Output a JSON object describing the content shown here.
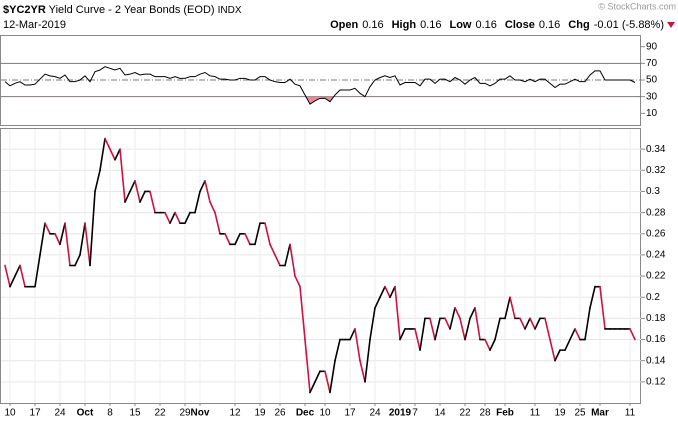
{
  "header": {
    "symbol": "$YC2YR",
    "name": "Yield Curve - 2 Year Bonds (EOD)",
    "exchange": "INDX",
    "date": "12-Mar-2019",
    "watermark": "© StockCharts.com",
    "quote": [
      {
        "label": "Open",
        "value": "0.16"
      },
      {
        "label": "High",
        "value": "0.16"
      },
      {
        "label": "Low",
        "value": "0.16"
      },
      {
        "label": "Close",
        "value": "0.16"
      },
      {
        "label": "Chg",
        "value": "-0.01 (-5.88%)"
      }
    ]
  },
  "chart_data": [
    {
      "type": "line",
      "ylim": [
        -4,
        104
      ],
      "yticks": [
        10,
        30,
        50,
        70,
        90
      ],
      "bands": [
        30,
        70
      ],
      "midline": 50,
      "fill_color": "#e88a9a",
      "series": [
        {
          "color": "#000000",
          "values": [
            48,
            43,
            46,
            48,
            44,
            44,
            45,
            51,
            57,
            55,
            54,
            52,
            56,
            48,
            48,
            50,
            55,
            48,
            60,
            62,
            66,
            64,
            62,
            64,
            56,
            57,
            59,
            56,
            57,
            57,
            54,
            54,
            54,
            52,
            54,
            52,
            52,
            54,
            54,
            57,
            59,
            55,
            54,
            51,
            51,
            50,
            50,
            52,
            52,
            50,
            50,
            54,
            54,
            50,
            48,
            47,
            47,
            51,
            45,
            43,
            32,
            21,
            25,
            28,
            28,
            24,
            32,
            38,
            38,
            38,
            40,
            34,
            30,
            42,
            50,
            53,
            55,
            53,
            55,
            44,
            47,
            47,
            47,
            43,
            51,
            51,
            46,
            51,
            51,
            48,
            53,
            50,
            45,
            50,
            53,
            46,
            46,
            43,
            46,
            51,
            51,
            55,
            50,
            50,
            48,
            51,
            48,
            51,
            51,
            46,
            41,
            45,
            45,
            48,
            51,
            48,
            48,
            56,
            61,
            61,
            50,
            50,
            50,
            50,
            50,
            50,
            47
          ]
        }
      ]
    },
    {
      "type": "line",
      "ylim": [
        0.1,
        0.36
      ],
      "yticks": [
        0.12,
        0.14,
        0.16,
        0.18,
        0.2,
        0.22,
        0.24,
        0.26,
        0.28,
        0.3,
        0.32,
        0.34
      ],
      "grid": true,
      "down_color": "#cc1144",
      "categories": [
        null,
        "10",
        null,
        null,
        null,
        null,
        "17",
        null,
        null,
        null,
        null,
        "24",
        null,
        null,
        null,
        null,
        "Oct",
        null,
        null,
        null,
        null,
        "8",
        null,
        null,
        null,
        null,
        "15",
        null,
        null,
        null,
        null,
        "22",
        null,
        null,
        null,
        null,
        "29",
        null,
        null,
        "Nov",
        null,
        null,
        null,
        null,
        null,
        null,
        "12",
        null,
        null,
        null,
        null,
        "19",
        null,
        null,
        null,
        "26",
        null,
        null,
        null,
        null,
        "Dec",
        null,
        null,
        null,
        "10",
        null,
        null,
        null,
        null,
        "17",
        null,
        null,
        null,
        null,
        "24",
        null,
        null,
        null,
        null,
        "2019",
        null,
        null,
        "7",
        null,
        null,
        null,
        null,
        "14",
        null,
        null,
        null,
        null,
        "22",
        null,
        null,
        null,
        "28",
        null,
        null,
        null,
        "Feb",
        null,
        null,
        null,
        null,
        null,
        "11",
        null,
        null,
        null,
        null,
        "19",
        null,
        null,
        null,
        "25",
        null,
        null,
        null,
        "Mar",
        null,
        null,
        null,
        null,
        null,
        "11",
        null
      ],
      "series": [
        {
          "color": "#000000",
          "values": [
            0.23,
            0.21,
            0.22,
            0.23,
            0.21,
            0.21,
            0.21,
            0.24,
            0.27,
            0.26,
            0.26,
            0.25,
            0.27,
            0.23,
            0.23,
            0.24,
            0.27,
            0.23,
            0.3,
            0.32,
            0.35,
            0.34,
            0.33,
            0.34,
            0.29,
            0.3,
            0.31,
            0.29,
            0.3,
            0.3,
            0.28,
            0.28,
            0.28,
            0.27,
            0.28,
            0.27,
            0.27,
            0.28,
            0.28,
            0.3,
            0.31,
            0.29,
            0.28,
            0.26,
            0.26,
            0.25,
            0.25,
            0.26,
            0.26,
            0.25,
            0.25,
            0.27,
            0.27,
            0.25,
            0.24,
            0.23,
            0.23,
            0.25,
            0.22,
            0.21,
            0.16,
            0.11,
            0.12,
            0.13,
            0.13,
            0.11,
            0.14,
            0.16,
            0.16,
            0.16,
            0.17,
            0.14,
            0.12,
            0.16,
            0.19,
            0.2,
            0.21,
            0.2,
            0.21,
            0.16,
            0.17,
            0.17,
            0.17,
            0.15,
            0.18,
            0.18,
            0.16,
            0.18,
            0.18,
            0.17,
            0.19,
            0.18,
            0.16,
            0.18,
            0.19,
            0.16,
            0.16,
            0.15,
            0.16,
            0.18,
            0.18,
            0.2,
            0.18,
            0.18,
            0.17,
            0.18,
            0.17,
            0.18,
            0.18,
            0.16,
            0.14,
            0.15,
            0.15,
            0.16,
            0.17,
            0.16,
            0.16,
            0.19,
            0.21,
            0.21,
            0.17,
            0.17,
            0.17,
            0.17,
            0.17,
            0.17,
            0.16
          ]
        }
      ]
    }
  ]
}
